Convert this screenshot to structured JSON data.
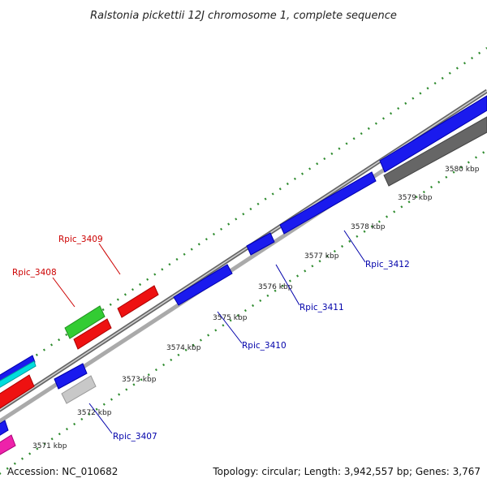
{
  "title": "Ralstonia pickettii 12J chromosome 1, complete sequence",
  "footer": {
    "accession": "Accession: NC_010682",
    "topology": "Topology: circular; Length: 3,942,557 bp; Genes: 3,767"
  },
  "ticks": [
    {
      "label": "3571 kbp"
    },
    {
      "label": "3572 kbp"
    },
    {
      "label": "3573 kbp"
    },
    {
      "label": "3574 kbp"
    },
    {
      "label": "3575 kbp"
    },
    {
      "label": "3576 kbp"
    },
    {
      "label": "3577 kbp"
    },
    {
      "label": "3578 kbp"
    },
    {
      "label": "3579 kbp"
    },
    {
      "label": "3580 kbp"
    }
  ],
  "gene_labels": [
    {
      "name": "Rpic_3407",
      "color": "#0000aa"
    },
    {
      "name": "Rpic_3408",
      "color": "#cc0000"
    },
    {
      "name": "Rpic_3409",
      "color": "#cc0000"
    },
    {
      "name": "Rpic_3410",
      "color": "#0000aa"
    },
    {
      "name": "Rpic_3411",
      "color": "#0000aa"
    },
    {
      "name": "Rpic_3412",
      "color": "#0000aa"
    }
  ],
  "colors": {
    "forward_strand": "#1a1aee",
    "reverse_red": "#ee1111",
    "green_feature": "#33cc33",
    "backbone": "#888888",
    "tick_green": "#2e8b2e"
  }
}
